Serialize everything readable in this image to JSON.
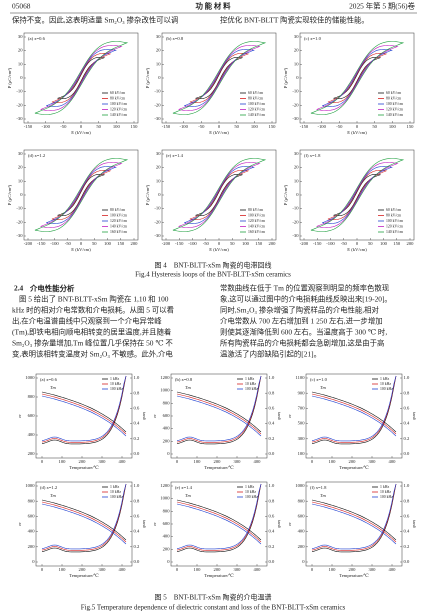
{
  "header": {
    "page": "05068",
    "journal": "功 能 材 料",
    "issue": "2025 年第 5 期(56)卷"
  },
  "top_lines": {
    "left": "保持不变。因此,这表明适量 Sm₂O₃ 掺杂改性可以调",
    "right": "控优化 BNT-BLTT 陶瓷实现较佳的储能性能。"
  },
  "fig4": {
    "x_axis": "E (kV/cm)",
    "y_axis": "P (μC/cm²)",
    "panels": [
      {
        "label": "(a) x=0.6",
        "xticks": [
          "-150",
          "-100",
          "-50",
          "0",
          "50",
          "100",
          "150"
        ],
        "yticks": [
          "-30",
          "-20",
          "-10",
          "0",
          "10",
          "20",
          "30"
        ],
        "legend": [
          "60 kV/cm",
          "80 kV/cm",
          "100 kV/cm",
          "120 kV/cm",
          "140 kV/cm"
        ]
      },
      {
        "label": "(b) x=0.8",
        "xticks": [
          "-150",
          "-100",
          "-50",
          "0",
          "50",
          "100",
          "150"
        ],
        "yticks": [
          "-30",
          "-20",
          "-10",
          "0",
          "10",
          "20",
          "30"
        ],
        "legend": [
          "60 kV/cm",
          "80 kV/cm",
          "100 kV/cm",
          "120 kV/cm",
          "140 kV/cm"
        ]
      },
      {
        "label": "(c) x=1.0",
        "xticks": [
          "-150",
          "-100",
          "-50",
          "0",
          "50",
          "100",
          "150"
        ],
        "yticks": [
          "-30",
          "-20",
          "-10",
          "0",
          "10",
          "20",
          "30"
        ],
        "legend": [
          "60 kV/cm",
          "80 kV/cm",
          "100 kV/cm",
          "120 kV/cm",
          "140 kV/cm"
        ]
      },
      {
        "label": "(d) x=1.2",
        "xticks": [
          "-200",
          "-150",
          "-100",
          "-50",
          "0",
          "50",
          "100",
          "150",
          "200"
        ],
        "yticks": [
          "-30",
          "-20",
          "-10",
          "0",
          "10",
          "20",
          "30"
        ],
        "legend": [
          "80 kV/cm",
          "100 kV/cm",
          "120 kV/cm",
          "140 kV/cm",
          "160 kV/cm"
        ]
      },
      {
        "label": "(e) x=1.4",
        "xticks": [
          "-200",
          "-150",
          "-100",
          "-50",
          "0",
          "50",
          "100",
          "150",
          "200"
        ],
        "yticks": [
          "-30",
          "-20",
          "-10",
          "0",
          "10",
          "20",
          "30"
        ],
        "legend": [
          "80 kV/cm",
          "100 kV/cm",
          "120 kV/cm",
          "140 kV/cm",
          "160 kV/cm"
        ]
      },
      {
        "label": "(f) x=1.8",
        "xticks": [
          "-200",
          "-150",
          "-100",
          "-50",
          "0",
          "50",
          "100",
          "150",
          "200"
        ],
        "yticks": [
          "-30",
          "-20",
          "-10",
          "0",
          "10",
          "20",
          "30"
        ],
        "legend": [
          "60 kV/cm",
          "80 kV/cm",
          "100 kV/cm",
          "120 kV/cm",
          "140 kV/cm"
        ]
      }
    ],
    "caption_cn": "图 4　BNT-BLTT-xSm 陶瓷的电滞回线",
    "caption_en": "Fig.4 Hysteresis loops of the BNT-BLTT-xSm ceramics"
  },
  "section": {
    "number": "2.4",
    "title": "介电性能分析",
    "left_lines": [
      "图 5 给出了 BNT-BLTT-xSm 陶瓷在 1,10 和 100",
      "kHz 时的相对介电常数和介电损耗。从图 5 可以看",
      "出,在介电温谱曲线中只观察到一个介电异常峰",
      "(Tm),即铁电相向顺电相转变的居里温度,并且随着",
      "Sm₂O₃ 掺杂量增加,Tm 峰位置几乎保持在 50 ℃ 不",
      "变,表明该相转变温度对 Sm₂O₃ 不敏感。此外,介电"
    ],
    "right_lines": [
      "常数曲线在低于 Tm 的位置观察到明显的频率色散现",
      "象,这可以通过图中的介电损耗曲线反映出来[19-20]。",
      "同时,Sm₂O₃ 掺杂增强了陶瓷样品的介电性能,相对",
      "介电常数从 700 左右增加到 1 250 左右,进一步增加",
      "则使其逐渐降低到 600 左右。当温度高于 300 ℃ 时,",
      "所有陶瓷样品的介电损耗都会急剧增加,这是由于高",
      "温激活了内部缺陷引起的[21]。"
    ]
  },
  "fig5": {
    "x_axis": "Temperature/℃",
    "y_axis": "εr",
    "y2_axis": "tanδ",
    "peak": "Tm",
    "legend": [
      "1 kHz",
      "10 kHz",
      "100 kHz"
    ],
    "xticks": [
      "0",
      "100",
      "200",
      "300",
      "400"
    ],
    "y2ticks": [
      "0.0",
      "0.2",
      "0.4",
      "0.6",
      "0.8",
      "1.0"
    ],
    "panels": [
      {
        "label": "(a) x=0.6",
        "yticks": [
          "200",
          "400",
          "600",
          "800",
          "1000"
        ]
      },
      {
        "label": "(b) x=0.8",
        "yticks": [
          "0",
          "200",
          "400",
          "600",
          "800",
          "1000",
          "1200"
        ]
      },
      {
        "label": "(c) x=1.0",
        "yticks": [
          "100",
          "300",
          "500",
          "700",
          "900",
          "1100"
        ]
      },
      {
        "label": "(d) x=1.2",
        "yticks": [
          "0",
          "200",
          "400",
          "600",
          "800",
          "1000"
        ]
      },
      {
        "label": "(e) x=1.4",
        "yticks": [
          "0",
          "200",
          "400",
          "600",
          "800",
          "1000",
          "1200"
        ]
      },
      {
        "label": "(f) x=1.8",
        "yticks": [
          "0",
          "200",
          "400",
          "600",
          "800",
          "1000"
        ]
      }
    ],
    "caption_cn": "图 5　BNT-BLTT-xSm 陶瓷的介电温谱",
    "caption_en": "Fig.5 Temperature dependence of dielectric constant and loss of the BNT-BLTT-xSm ceramics"
  }
}
